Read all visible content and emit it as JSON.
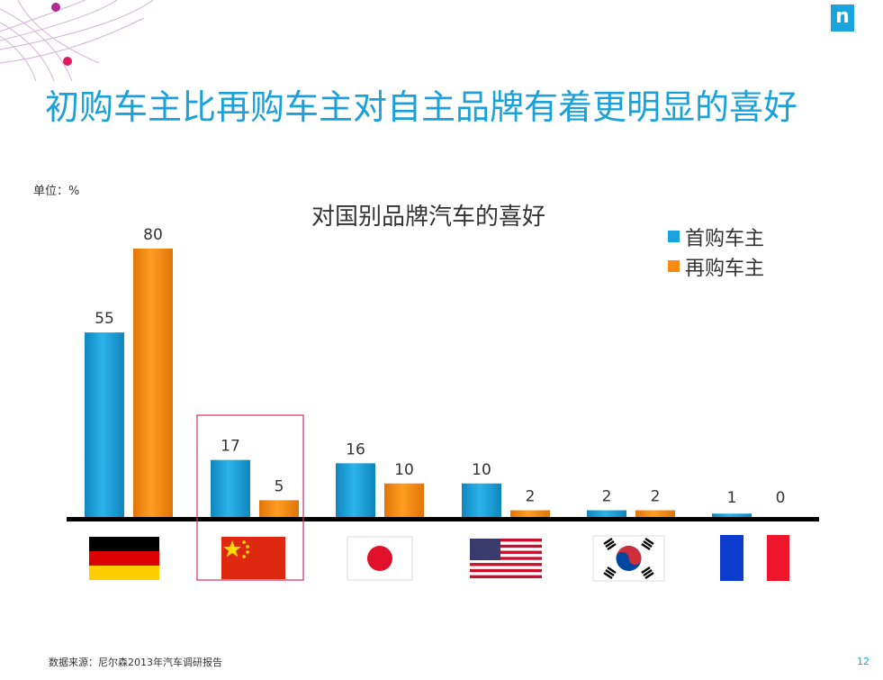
{
  "header": {
    "logo_letter": "n",
    "title": "初购车主比再购车主对自主品牌有着更明显的喜好"
  },
  "unit_label": "单位：%",
  "footer": {
    "source": "数据来源：尼尔森2013年汽车调研报告",
    "page_number": "12"
  },
  "colors": {
    "series_first": "#1aa3dc",
    "series_repeat": "#f98c10",
    "title": "#1ba1d9",
    "highlight_box": "#d0306a"
  },
  "chart_data": {
    "type": "bar",
    "title": "对国别品牌汽车的喜好",
    "categories": [
      "germany-flag",
      "china-flag",
      "japan-flag",
      "usa-flag",
      "korea-flag",
      "france-flag"
    ],
    "series": [
      {
        "name": "首购车主",
        "values": [
          55,
          17,
          16,
          10,
          2,
          1
        ]
      },
      {
        "name": "再购车主",
        "values": [
          80,
          5,
          10,
          2,
          2,
          0
        ]
      }
    ],
    "ylim": [
      0,
      80
    ],
    "grid": false,
    "legend": "top-right",
    "highlighted_category": "china-flag"
  }
}
